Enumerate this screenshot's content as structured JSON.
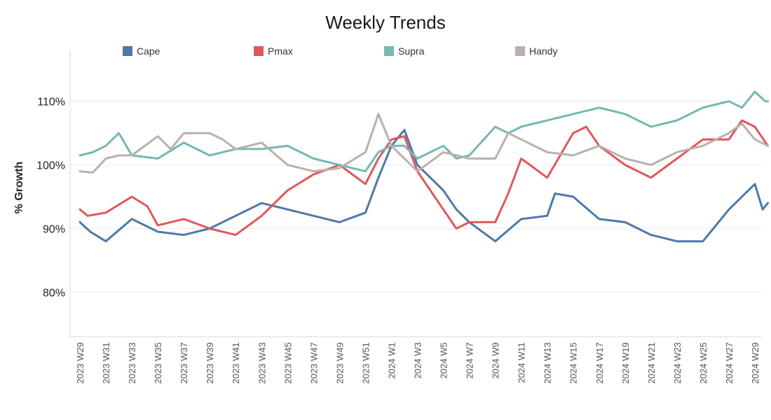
{
  "chart_data": {
    "type": "line",
    "title": "Weekly Trends",
    "xlabel": "",
    "ylabel": "% Growth",
    "ylim": [
      73,
      118
    ],
    "yticks": [
      {
        "value": 80,
        "label": "80%"
      },
      {
        "value": 90,
        "label": "90%"
      },
      {
        "value": 100,
        "label": "100%"
      },
      {
        "value": 110,
        "label": "110%"
      }
    ],
    "categories": [
      "2023 W29",
      "2023 W31",
      "2023 W33",
      "2023 W35",
      "2023 W37",
      "2023 W39",
      "2023 W41",
      "2023 W43",
      "2023 W45",
      "2023 W47",
      "2023 W49",
      "2023 W51",
      "2024 W1",
      "2024 W3",
      "2024 W5",
      "2024 W7",
      "2024 W9",
      "2024 W11",
      "2024 W13",
      "2024 W15",
      "2024 W17",
      "2024 W19",
      "2024 W21",
      "2024 W23",
      "2024 W25",
      "2024 W27",
      "2024 W29"
    ],
    "grid": true,
    "legend_position": "top",
    "series": [
      {
        "name": "Cape",
        "color": "#4e79a7",
        "x": [
          0,
          0.4,
          1,
          2,
          3,
          4,
          5,
          6,
          7,
          8,
          9,
          10,
          11,
          11.5,
          12,
          12.5,
          13,
          14,
          14.5,
          15,
          16,
          17,
          18,
          18.3,
          19,
          20,
          21,
          22,
          23,
          24,
          25,
          26,
          26.3,
          26.5
        ],
        "values": [
          91,
          89.5,
          88,
          91.5,
          89.5,
          89,
          90,
          92,
          94,
          93,
          92,
          91,
          92.5,
          98,
          103,
          105.5,
          100,
          96,
          93,
          91,
          88,
          91.5,
          92,
          95.5,
          95,
          91.5,
          91,
          89,
          88,
          88,
          93,
          97,
          93,
          94
        ]
      },
      {
        "name": "Pmax",
        "color": "#e15759",
        "x": [
          0,
          0.3,
          1,
          2,
          2.6,
          3,
          3.5,
          4,
          5,
          6,
          7,
          8,
          9,
          10,
          11,
          11.5,
          12,
          12.5,
          13,
          14,
          14.5,
          15,
          16,
          16.5,
          17,
          18,
          19,
          19.5,
          20,
          21,
          22,
          23,
          24,
          25,
          25.5,
          26,
          26.5
        ],
        "values": [
          93,
          92,
          92.5,
          95,
          93.5,
          90.5,
          91,
          91.5,
          90,
          89,
          92,
          96,
          98.5,
          100,
          97,
          101,
          104,
          104.5,
          99,
          93,
          90,
          91,
          91,
          95.5,
          101,
          98,
          105,
          106,
          103,
          100,
          98,
          101,
          104,
          104,
          107,
          106,
          103
        ]
      },
      {
        "name": "Supra",
        "color": "#76b7b2",
        "x": [
          0,
          0.5,
          1,
          1.5,
          2,
          3,
          4,
          5,
          6,
          7,
          8,
          9,
          10,
          11,
          11.5,
          12,
          12.5,
          13,
          14,
          14.5,
          15,
          16,
          16.5,
          17,
          18,
          19,
          20,
          21,
          22,
          23,
          24,
          25,
          25.5,
          26,
          26.4,
          26.5
        ],
        "values": [
          101.5,
          102,
          103,
          105,
          101.5,
          101,
          103.5,
          101.5,
          102.5,
          102.5,
          103,
          101,
          100,
          99,
          102,
          103,
          103,
          101,
          103,
          101,
          101.5,
          106,
          105,
          106,
          107,
          108,
          109,
          108,
          106,
          107,
          109,
          110,
          109,
          111.5,
          110,
          110
        ]
      },
      {
        "name": "Handy",
        "color": "#bab0ac",
        "x": [
          0,
          0.5,
          1,
          1.5,
          2,
          3,
          3.5,
          4,
          5,
          5.5,
          6,
          7,
          8,
          9,
          10,
          11,
          11.5,
          12,
          12.5,
          13,
          14,
          14.5,
          15,
          16,
          16.5,
          17,
          18,
          19,
          20,
          21,
          22,
          23,
          24,
          25,
          25.5,
          26,
          26.5
        ],
        "values": [
          99,
          98.8,
          101,
          101.5,
          101.5,
          104.5,
          102.5,
          105,
          105,
          104,
          102.5,
          103.5,
          100,
          99,
          99.5,
          102,
          108,
          103,
          101,
          99,
          102,
          101.5,
          101,
          101,
          105,
          104,
          102,
          101.5,
          103,
          101,
          100,
          102,
          103,
          105,
          106.5,
          104,
          103
        ]
      }
    ]
  }
}
